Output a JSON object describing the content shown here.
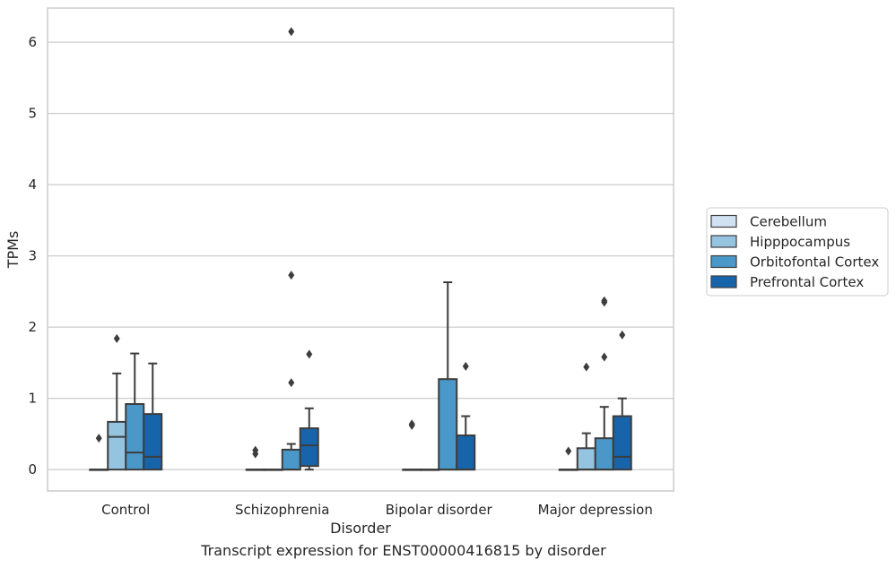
{
  "caption": "Transcript expression for ENST00000416815 by disorder",
  "chart_data": {
    "type": "box",
    "xlabel": "Disorder",
    "ylabel": "TPMs",
    "ylim": [
      -0.3,
      6.48
    ],
    "yticks": [
      0,
      1,
      2,
      3,
      4,
      5,
      6
    ],
    "grid": "horizontal",
    "legend_position": "right",
    "categories": [
      "Control",
      "Schizophrenia",
      "Bipolar disorder",
      "Major depression"
    ],
    "series": [
      {
        "name": "Cerebellum",
        "color": "#d0e1f2",
        "boxes": [
          {
            "min": 0,
            "q1": 0,
            "median": 0,
            "q3": 0,
            "max": 0,
            "outliers": [
              0.44
            ]
          },
          {
            "min": 0,
            "q1": 0,
            "median": 0,
            "q3": 0,
            "max": 0,
            "outliers": [
              0.22,
              0.27
            ]
          },
          {
            "min": 0,
            "q1": 0,
            "median": 0,
            "q3": 0,
            "max": 0,
            "outliers": [
              0.62,
              0.64
            ]
          },
          {
            "min": 0,
            "q1": 0,
            "median": 0,
            "q3": 0,
            "max": 0,
            "outliers": [
              0.26
            ]
          }
        ]
      },
      {
        "name": "Hipppocampus",
        "color": "#94c4df",
        "boxes": [
          {
            "min": 0,
            "q1": 0,
            "median": 0.46,
            "q3": 0.67,
            "max": 1.35,
            "outliers": [
              1.84
            ]
          },
          {
            "min": 0,
            "q1": 0,
            "median": 0,
            "q3": 0,
            "max": 0,
            "outliers": []
          },
          {
            "min": 0,
            "q1": 0,
            "median": 0,
            "q3": 0,
            "max": 0,
            "outliers": []
          },
          {
            "min": 0,
            "q1": 0,
            "median": 0,
            "q3": 0.3,
            "max": 0.51,
            "outliers": [
              1.44
            ]
          }
        ]
      },
      {
        "name": "Orbitofontal Cortex",
        "color": "#4a98c9",
        "boxes": [
          {
            "min": 0,
            "q1": 0,
            "median": 0.24,
            "q3": 0.92,
            "max": 1.63,
            "outliers": []
          },
          {
            "min": 0,
            "q1": 0,
            "median": 0,
            "q3": 0.28,
            "max": 0.36,
            "outliers": [
              1.22,
              2.73,
              6.15
            ]
          },
          {
            "min": 0,
            "q1": 0,
            "median": 0,
            "q3": 1.27,
            "max": 2.63,
            "outliers": []
          },
          {
            "min": 0,
            "q1": 0,
            "median": 0,
            "q3": 0.44,
            "max": 0.88,
            "outliers": [
              1.58,
              2.35,
              2.37
            ]
          }
        ]
      },
      {
        "name": "Prefrontal Cortex",
        "color": "#1764ab",
        "boxes": [
          {
            "min": 0,
            "q1": 0,
            "median": 0.18,
            "q3": 0.78,
            "max": 1.49,
            "outliers": []
          },
          {
            "min": 0,
            "q1": 0.05,
            "median": 0.34,
            "q3": 0.58,
            "max": 0.86,
            "outliers": [
              1.62
            ]
          },
          {
            "min": 0,
            "q1": 0,
            "median": 0,
            "q3": 0.48,
            "max": 0.75,
            "outliers": [
              1.45
            ]
          },
          {
            "min": 0,
            "q1": 0,
            "median": 0.18,
            "q3": 0.75,
            "max": 1.0,
            "outliers": [
              1.89
            ]
          }
        ]
      }
    ]
  }
}
